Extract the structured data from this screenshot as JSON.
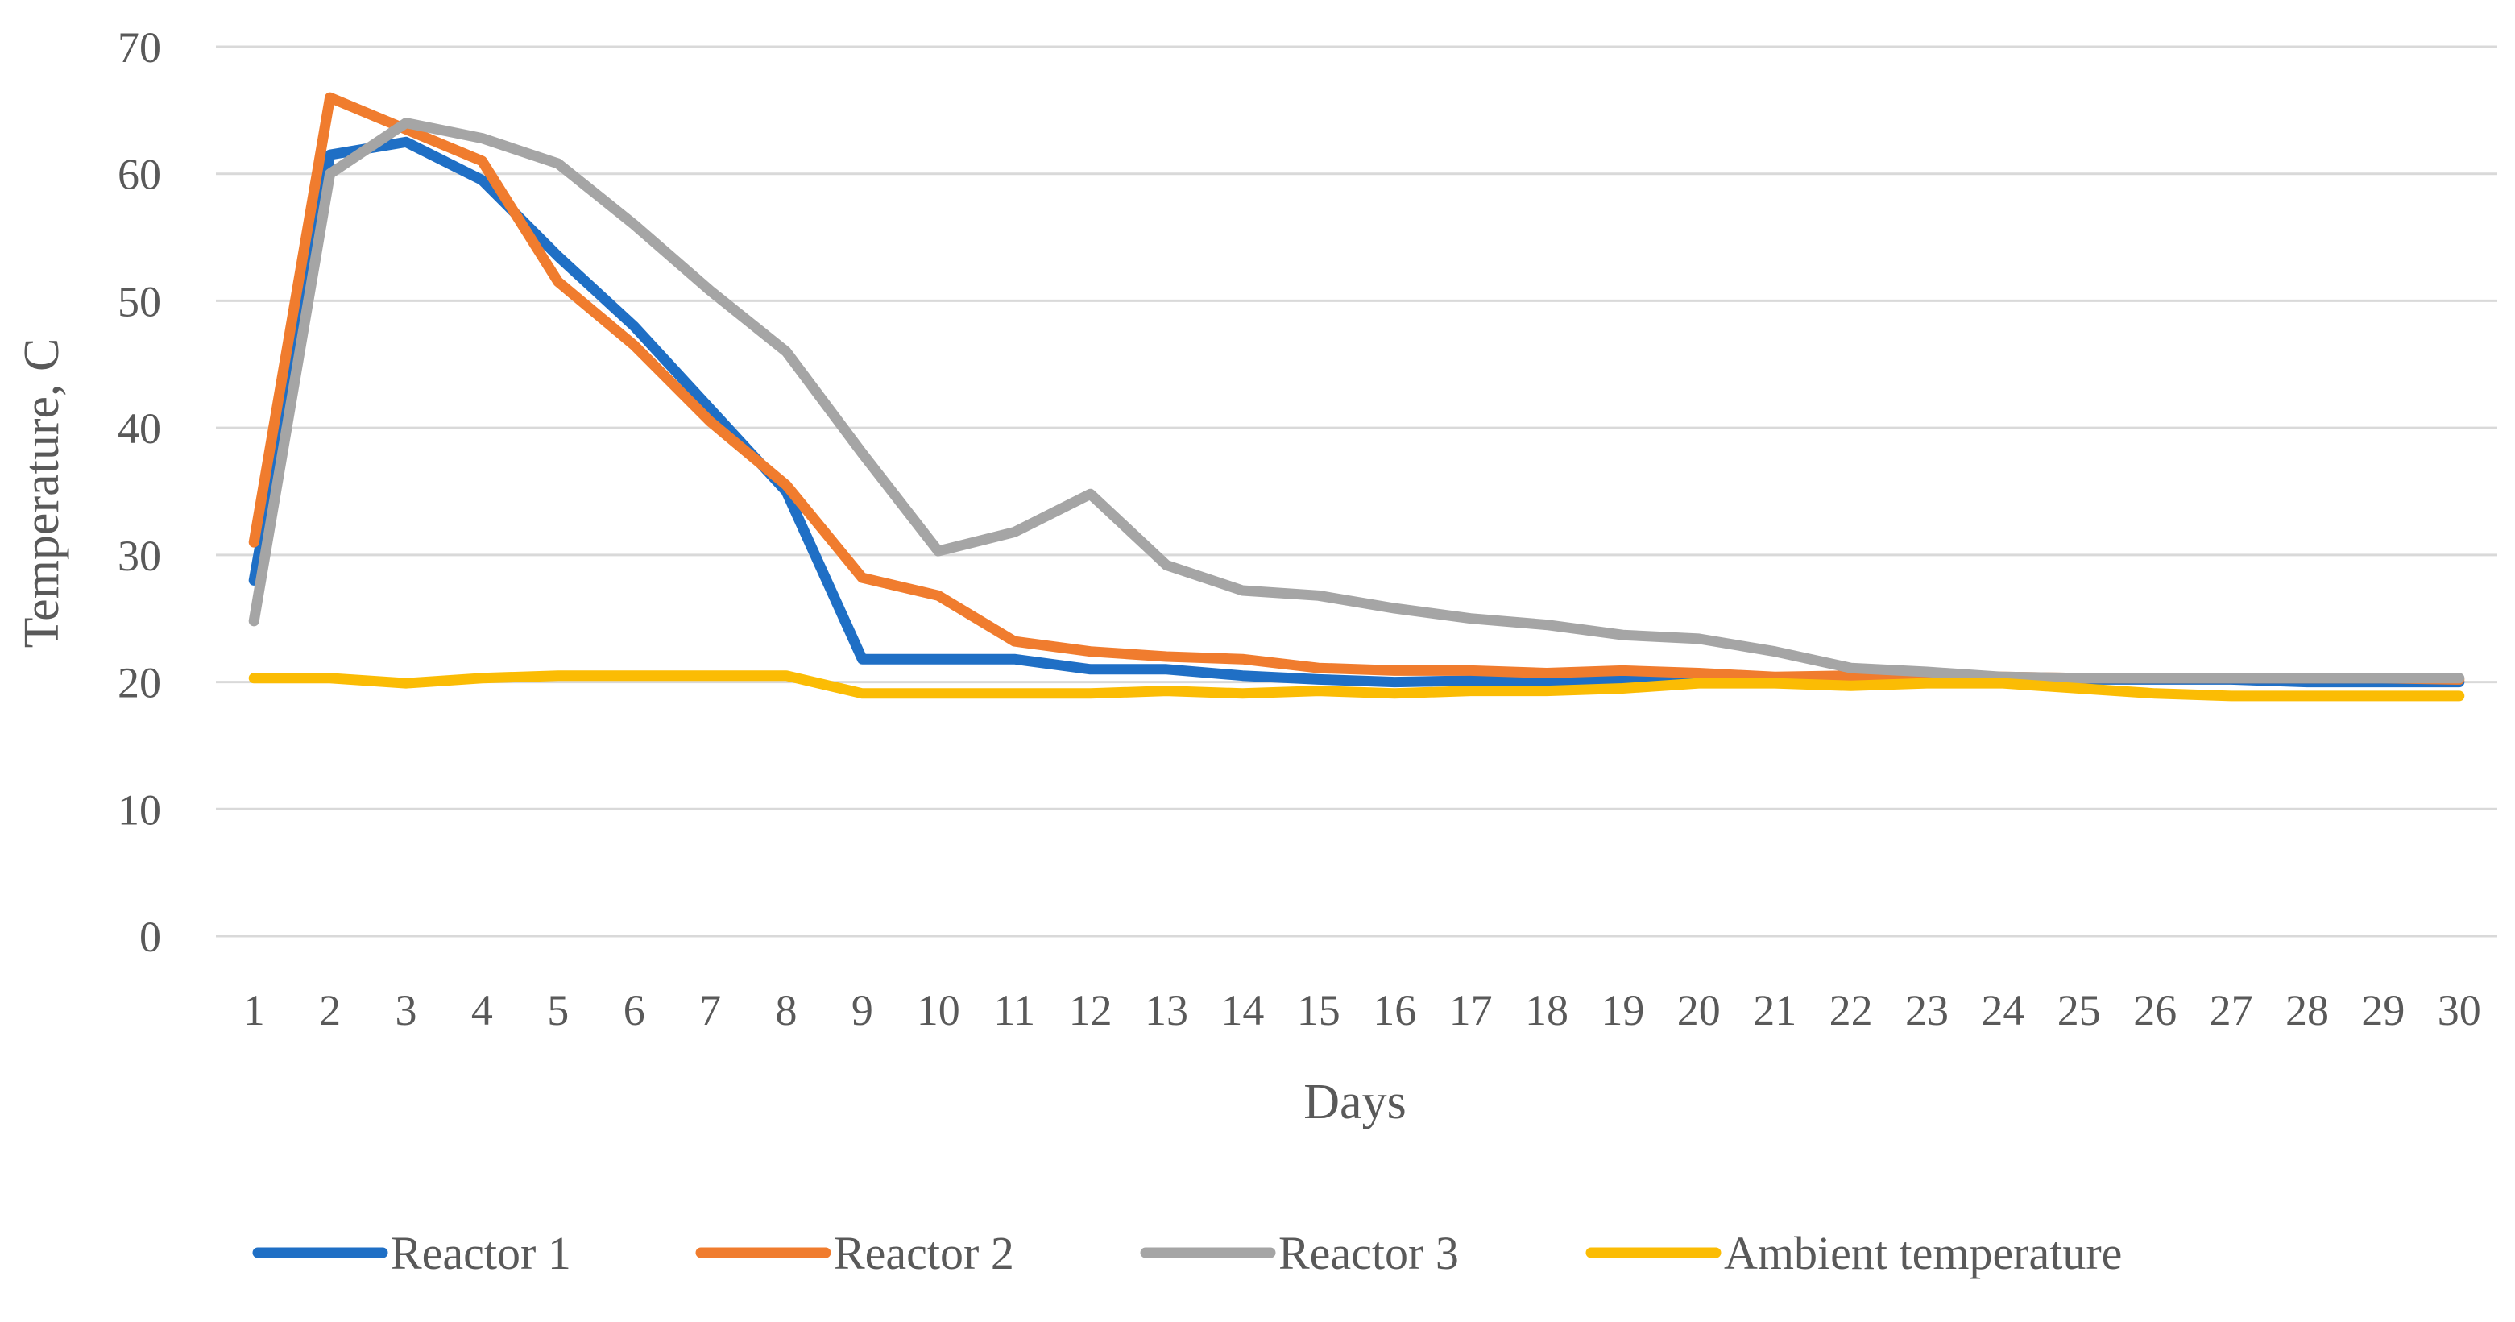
{
  "chart_data": {
    "type": "line",
    "title": "",
    "xlabel": "Days",
    "ylabel": "Temperature, C",
    "ylim": [
      0,
      70
    ],
    "yticks": [
      "0",
      "10",
      "20",
      "30",
      "40",
      "50",
      "60",
      "70"
    ],
    "grid": true,
    "legend_position": "bottom",
    "categories": [
      "1",
      "2",
      "3",
      "4",
      "5",
      "6",
      "7",
      "8",
      "9",
      "10",
      "11",
      "12",
      "13",
      "14",
      "15",
      "16",
      "17",
      "18",
      "19",
      "20",
      "21",
      "22",
      "23",
      "24",
      "25",
      "26",
      "27",
      "28",
      "29",
      "30"
    ],
    "series": [
      {
        "name": "Reactor 1",
        "color": "#1f6fc5",
        "values": [
          28,
          61.5,
          62.5,
          59.5,
          53.5,
          48,
          41.5,
          35,
          21.8,
          21.8,
          21.8,
          21,
          21,
          20.5,
          20.2,
          20,
          20.1,
          20,
          20.2,
          20.5,
          20.2,
          20.3,
          20.4,
          20.3,
          20.2,
          20.2,
          20.2,
          20,
          20,
          20
        ]
      },
      {
        "name": "Reactor 2",
        "color": "#f07c2e",
        "values": [
          31,
          66,
          63.5,
          61,
          51.5,
          46.5,
          40.5,
          35.5,
          28.2,
          26.8,
          23.2,
          22.4,
          22,
          21.8,
          21.1,
          20.9,
          20.9,
          20.7,
          20.9,
          20.7,
          20.4,
          20.5,
          20.5,
          20.4,
          20.3,
          20.3,
          20.3,
          20.3,
          20.3,
          20.2
        ]
      },
      {
        "name": "Reactor 3",
        "color": "#a5a5a5",
        "values": [
          24.8,
          60,
          64,
          62.8,
          60.8,
          56,
          50.8,
          46,
          38,
          30.3,
          31.8,
          34.8,
          29.2,
          27.2,
          26.8,
          25.8,
          25,
          24.5,
          23.7,
          23.4,
          22.4,
          21.1,
          20.8,
          20.4,
          20.3,
          20.3,
          20.3,
          20.3,
          20.3,
          20.3
        ]
      },
      {
        "name": "Ambient temperature",
        "color": "#fbbc04",
        "values": [
          20.3,
          20.3,
          19.9,
          20.3,
          20.5,
          20.5,
          20.5,
          20.5,
          19.1,
          19.1,
          19.1,
          19.1,
          19.3,
          19.1,
          19.3,
          19.1,
          19.3,
          19.3,
          19.5,
          19.9,
          19.9,
          19.7,
          19.9,
          19.9,
          19.5,
          19.1,
          18.9,
          18.9,
          18.9,
          18.9
        ]
      }
    ]
  }
}
